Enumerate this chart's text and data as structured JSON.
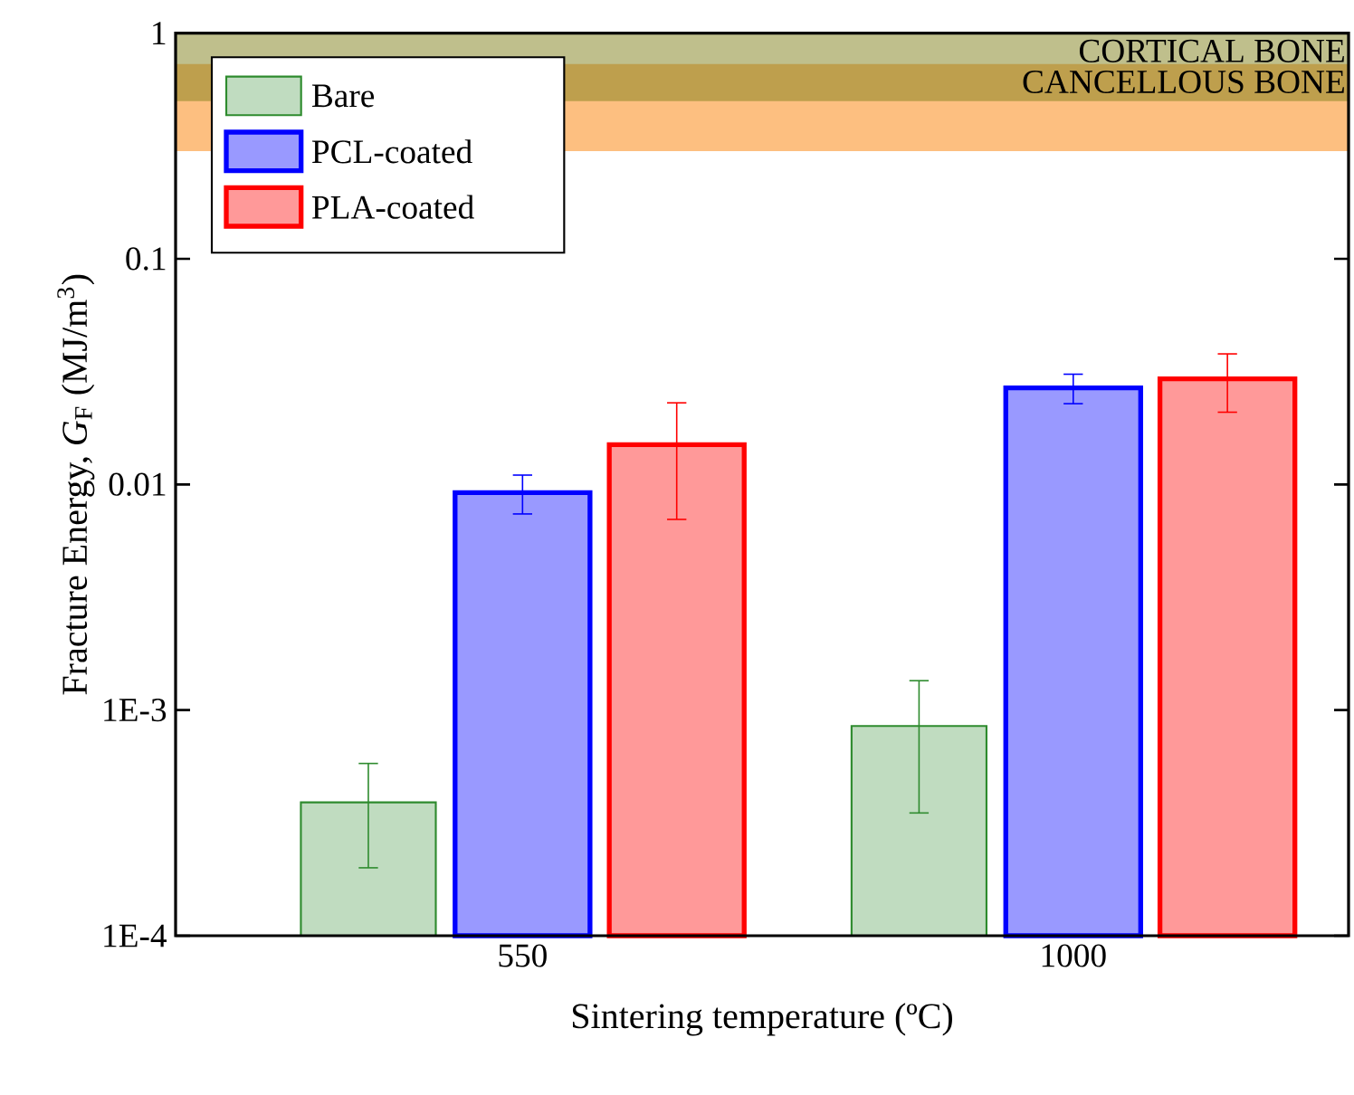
{
  "chart_data": {
    "type": "bar",
    "xlabel": "Sintering temperature (ºC)",
    "ylabel": "Fracture Energy, *G*$_{F}$ (MJ/m$^{3}$)",
    "categories": [
      "550",
      "1000"
    ],
    "series": [
      {
        "name": "Bare",
        "color": "#2e8b2e",
        "values": [
          0.00039,
          0.00085
        ],
        "errors": [
          0.00019,
          0.0005
        ]
      },
      {
        "name": "PCL-coated",
        "color": "#0000ff",
        "values": [
          0.0092,
          0.0268
        ],
        "errors": [
          0.0018,
          0.004
        ]
      },
      {
        "name": "PLA-coated",
        "color": "#ff0000",
        "values": [
          0.015,
          0.0294
        ],
        "errors": [
          0.008,
          0.0085
        ]
      }
    ],
    "log": "y",
    "ylim": [
      0.0001,
      1
    ],
    "yticks": [
      1,
      0.1,
      0.01,
      {
        "value": 0.001,
        "label": "1E-3"
      },
      {
        "value": 0.0001,
        "label": "1E-4"
      }
    ],
    "bands": [
      {
        "axis": "y",
        "from": 0.3,
        "to": 0.73,
        "label": "CANCELLOUS BONE",
        "color": "#fdbf80"
      },
      {
        "axis": "y",
        "from": 0.5,
        "to": 1,
        "label": "CORTICAL BONE",
        "color": "#7f7f1a"
      }
    ],
    "legend": "top left",
    "grid": false
  }
}
